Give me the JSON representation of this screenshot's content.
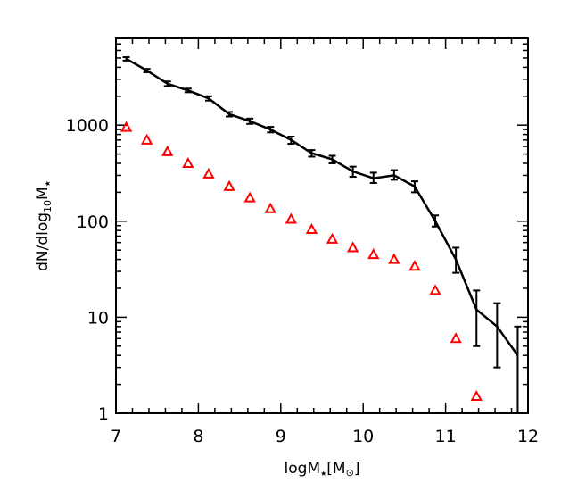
{
  "chart_data": {
    "type": "line",
    "title": "",
    "xlabel": {
      "main": "logM",
      "sub": "★",
      "bracket_open": "[M",
      "sub2": "⊙",
      "bracket_close": "]"
    },
    "ylabel": {
      "pre": "dN/dlog",
      "sub": "10",
      "main": "M",
      "sub2": "★"
    },
    "xlim": [
      7,
      12
    ],
    "ylim": [
      1,
      8000
    ],
    "yscale": "log",
    "grid": false,
    "legend": "none",
    "x_ticks": [
      7,
      8,
      9,
      10,
      11,
      12
    ],
    "x_tick_labels": [
      "7",
      "8",
      "9",
      "10",
      "11",
      "12"
    ],
    "y_ticks": [
      1,
      10,
      100,
      1000
    ],
    "y_tick_labels": [
      "1",
      "10",
      "100",
      "1000"
    ],
    "series": [
      {
        "style": "line-errorbar",
        "color": "#000000",
        "x": [
          7.125,
          7.375,
          7.625,
          7.875,
          8.125,
          8.375,
          8.625,
          8.875,
          9.125,
          9.375,
          9.625,
          9.875,
          10.125,
          10.375,
          10.625,
          10.875,
          11.125,
          11.375,
          11.625,
          11.875
        ],
        "y": [
          4900,
          3700,
          2700,
          2300,
          1900,
          1300,
          1100,
          900,
          700,
          510,
          440,
          330,
          280,
          300,
          230,
          100,
          40,
          12,
          8,
          4
        ],
        "yerr_low": [
          4700,
          3550,
          2550,
          2200,
          1800,
          1230,
          1030,
          840,
          640,
          470,
          400,
          290,
          250,
          270,
          200,
          88,
          29,
          5,
          3,
          1
        ],
        "yerr_high": [
          5100,
          3850,
          2850,
          2400,
          2000,
          1370,
          1170,
          960,
          760,
          550,
          480,
          370,
          320,
          340,
          260,
          115,
          53,
          19,
          14,
          8
        ]
      },
      {
        "style": "triangles",
        "color": "#ff0000",
        "x": [
          7.125,
          7.375,
          7.625,
          7.875,
          8.125,
          8.375,
          8.625,
          8.875,
          9.125,
          9.375,
          9.625,
          9.875,
          10.125,
          10.375,
          10.625,
          10.875,
          11.125,
          11.375
        ],
        "y": [
          950,
          700,
          530,
          400,
          310,
          230,
          175,
          135,
          105,
          82,
          65,
          53,
          45,
          40,
          34,
          19,
          6,
          1.5
        ]
      }
    ]
  }
}
